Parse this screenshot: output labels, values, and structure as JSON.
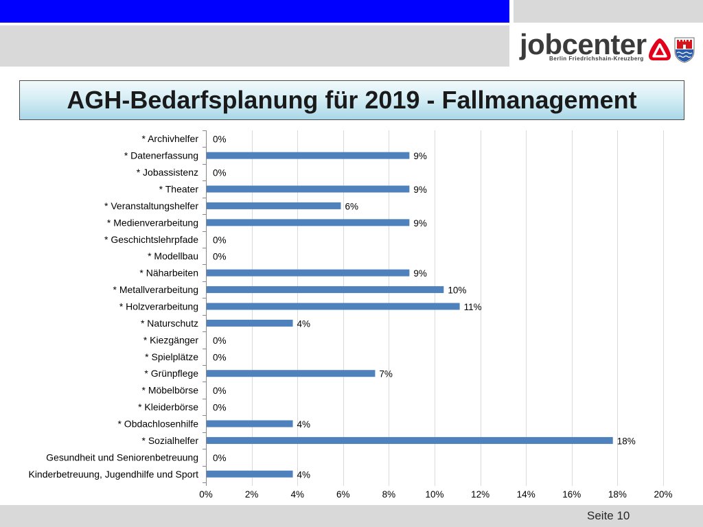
{
  "theme": {
    "header_blue": "#0000ff",
    "panel_gray": "#d9d9d9"
  },
  "header": {
    "logo_text": "jobcenter",
    "logo_subtitle": "Berlin Friedrichshain-Kreuzberg",
    "icons": {
      "agentur_logo": "agentur-fuer-arbeit-logo-icon",
      "coat_of_arms": "coat-of-arms-icon"
    }
  },
  "chart_data": {
    "type": "bar",
    "orientation": "horizontal",
    "title": "AGH-Bedarfsplanung für 2019 - Fallmanagement",
    "categories": [
      "* Archivhelfer",
      "* Datenerfassung",
      "* Jobassistenz",
      "* Theater",
      "* Veranstaltungshelfer",
      "* Medienverarbeitung",
      "* Geschichtslehrpfade",
      "* Modellbau",
      "* Näharbeiten",
      "* Metallverarbeitung",
      "* Holzverarbeitung",
      "* Naturschutz",
      "* Kiezgänger",
      "* Spielplätze",
      "* Grünpflege",
      "* Möbelbörse",
      "* Kleiderbörse",
      "* Obdachlosenhilfe",
      "* Sozialhelfer",
      "Gesundheit und Seniorenbetreuung",
      "Kinderbetreuung, Jugendhilfe und Sport"
    ],
    "values": [
      0,
      8.9,
      0,
      8.9,
      5.9,
      8.9,
      0,
      0,
      8.9,
      10.4,
      11.1,
      3.8,
      0,
      0,
      7.4,
      0,
      0,
      3.8,
      17.8,
      0,
      3.8
    ],
    "data_labels": [
      "0%",
      "9%",
      "0%",
      "9%",
      "6%",
      "9%",
      "0%",
      "0%",
      "9%",
      "10%",
      "11%",
      "4%",
      "0%",
      "0%",
      "7%",
      "0%",
      "0%",
      "4%",
      "18%",
      "0%",
      "4%"
    ],
    "xlim": [
      0,
      20
    ],
    "x_ticks": [
      0,
      2,
      4,
      6,
      8,
      10,
      12,
      14,
      16,
      18,
      20
    ],
    "x_tick_labels": [
      "0%",
      "2%",
      "4%",
      "6%",
      "8%",
      "10%",
      "12%",
      "14%",
      "16%",
      "18%",
      "20%"
    ],
    "grid": "vertical",
    "legend": "none",
    "bar_color": "#4f81bd"
  },
  "footer": {
    "page_label": "Seite 10"
  }
}
